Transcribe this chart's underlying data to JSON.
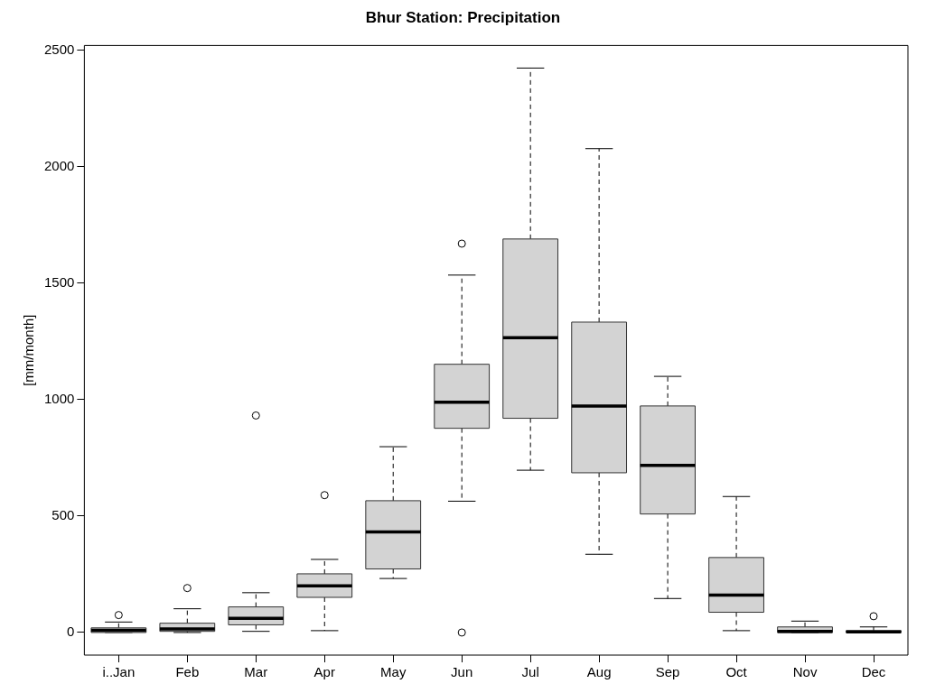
{
  "chart_data": {
    "type": "box",
    "title": "Bhur Station: Precipitation",
    "ylabel": "[mm/month]",
    "categories": [
      "i..Jan",
      "Feb",
      "Mar",
      "Apr",
      "May",
      "Jun",
      "Jul",
      "Aug",
      "Sep",
      "Oct",
      "Nov",
      "Dec"
    ],
    "color": "#d3d3d3",
    "boxes": [
      {
        "low": 0,
        "q1": 0,
        "median": 10,
        "q3": 20,
        "high": 45,
        "outliers": [
          75
        ]
      },
      {
        "low": 0,
        "q1": 5,
        "median": 15,
        "q3": 40,
        "high": 102,
        "outliers": [
          191
        ]
      },
      {
        "low": 5,
        "q1": 33,
        "median": 61,
        "q3": 110,
        "high": 171,
        "outliers": [
          932
        ]
      },
      {
        "low": 8,
        "q1": 151,
        "median": 200,
        "q3": 252,
        "high": 314,
        "outliers": [
          590
        ]
      },
      {
        "low": 232,
        "q1": 273,
        "median": 432,
        "q3": 566,
        "high": 798
      },
      {
        "low": 564,
        "q1": 877,
        "median": 989,
        "q3": 1152,
        "high": 1535,
        "outliers": [
          1670,
          0
        ]
      },
      {
        "low": 697,
        "q1": 920,
        "median": 1266,
        "q3": 1690,
        "high": 2424
      },
      {
        "low": 336,
        "q1": 686,
        "median": 973,
        "q3": 1333,
        "high": 2078
      },
      {
        "low": 146,
        "q1": 509,
        "median": 718,
        "q3": 973,
        "high": 1100
      },
      {
        "low": 8,
        "q1": 87,
        "median": 161,
        "q3": 322,
        "high": 584
      },
      {
        "low": 0,
        "q1": 0,
        "median": 5,
        "q3": 24,
        "high": 49
      },
      {
        "low": 0,
        "q1": 0,
        "median": 3,
        "q3": 8,
        "high": 24,
        "outliers": [
          70
        ]
      }
    ],
    "ylim": [
      -97,
      2521
    ],
    "yticks": [
      0,
      500,
      1000,
      1500,
      2000,
      2500
    ]
  }
}
